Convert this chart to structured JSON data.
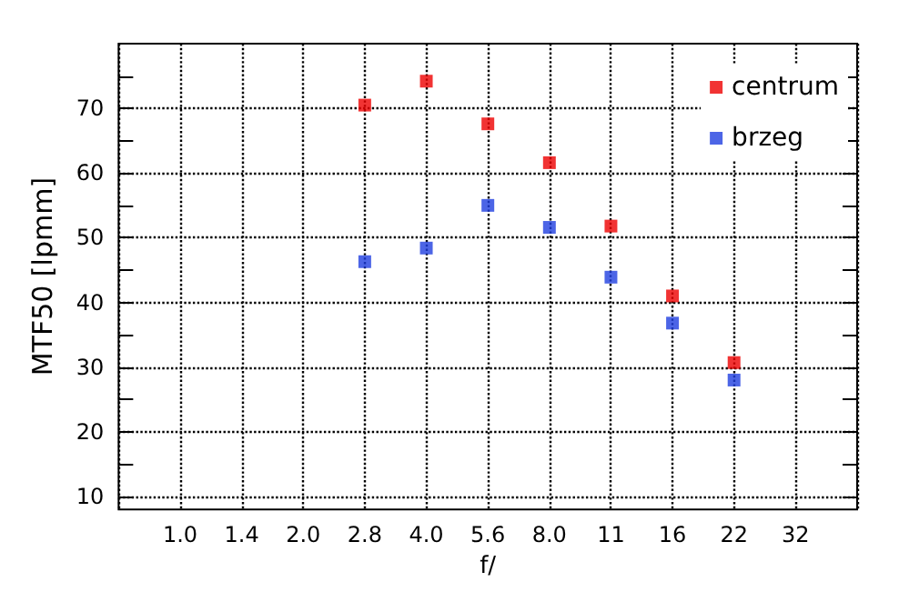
{
  "chart_data": {
    "type": "scatter",
    "xlabel": "f/",
    "ylabel": "MTF50 [lpmm]",
    "categories": [
      "1.0",
      "1.4",
      "2.0",
      "2.8",
      "4.0",
      "5.6",
      "8.0",
      "11",
      "16",
      "22",
      "32"
    ],
    "series": [
      {
        "name": "centrum",
        "color": "#ee0000",
        "values": [
          null,
          null,
          null,
          70.5,
          74.2,
          67.6,
          61.6,
          51.8,
          41.0,
          30.7,
          null
        ]
      },
      {
        "name": "brzeg",
        "color": "#1f3fe0",
        "values": [
          null,
          null,
          null,
          46.3,
          48.4,
          55.0,
          51.6,
          43.9,
          36.8,
          28.0,
          null
        ]
      }
    ],
    "ylim": [
      8,
      80
    ],
    "yticks": [
      10,
      {
        "value": 15,
        "label": null
      },
      20,
      {
        "value": 25,
        "label": null
      },
      30,
      {
        "value": 35,
        "label": null
      },
      40,
      {
        "value": 45,
        "label": null
      },
      50,
      {
        "value": 55,
        "label": null
      },
      60,
      {
        "value": 65,
        "label": null
      },
      70,
      {
        "value": 75,
        "label": null
      }
    ],
    "grid": true,
    "legend": "top right",
    "marker": "square"
  }
}
